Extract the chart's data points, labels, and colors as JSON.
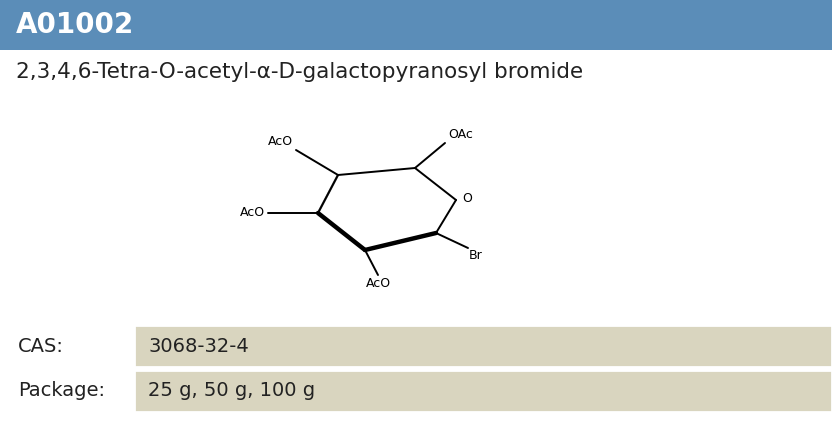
{
  "product_id": "A01002",
  "compound_name": "2,3,4,6-Tetra-O-acetyl-α-D-galactopyranosyl bromide",
  "cas_label": "CAS:",
  "cas_value": "3068-32-4",
  "package_label": "Package:",
  "package_value": "25 g, 50 g, 100 g",
  "header_bg_color": "#5b8db8",
  "header_text_color": "#ffffff",
  "body_bg_color": "#ffffff",
  "table_bg_color": "#d9d5bf",
  "name_text_color": "#222222",
  "table_text_color": "#222222",
  "fig_width": 8.32,
  "fig_height": 4.33,
  "dpi": 100
}
